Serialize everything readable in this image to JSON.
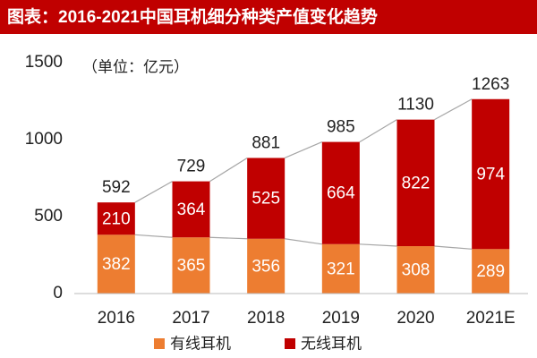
{
  "chart_data": {
    "type": "stacked-bar",
    "title": "图表：2016-2021中国耳机细分种类产值变化趋势",
    "annotation": "（单位：亿元）",
    "categories": [
      "2016",
      "2017",
      "2018",
      "2019",
      "2020",
      "2021E"
    ],
    "series": [
      {
        "name": "有线耳机",
        "color": "#ED7D31",
        "values": [
          382,
          365,
          356,
          321,
          308,
          289
        ]
      },
      {
        "name": "无线耳机",
        "color": "#C00000",
        "values": [
          210,
          364,
          525,
          664,
          822,
          974
        ]
      }
    ],
    "totals": [
      592,
      729,
      881,
      985,
      1130,
      1263
    ],
    "ylim": [
      0,
      1500
    ],
    "yticks": [
      0,
      500,
      1000,
      1500
    ],
    "title_color": "#C00000",
    "connector_color": "#A6A6A6"
  }
}
